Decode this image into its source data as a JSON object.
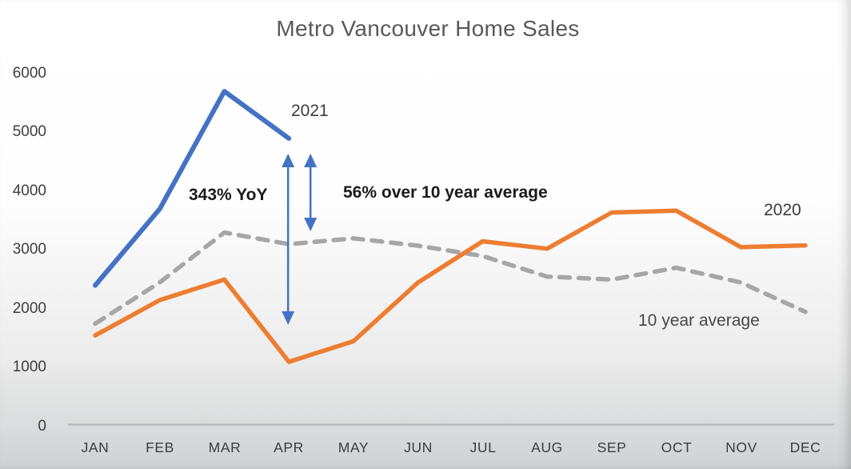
{
  "chart_data": {
    "type": "line",
    "title": "Metro Vancouver Home Sales",
    "categories": [
      "JAN",
      "FEB",
      "MAR",
      "APR",
      "MAY",
      "JUN",
      "JUL",
      "AUG",
      "SEP",
      "OCT",
      "NOV",
      "DEC"
    ],
    "ytick_labels": [
      "6000",
      "5000",
      "4000",
      "3000",
      "2000",
      "1000",
      "0"
    ],
    "ylim": [
      0,
      6000
    ],
    "grid": false,
    "legend": "inline-labels",
    "axis_color": "#b3b3b3",
    "series": [
      {
        "name": "2021",
        "color": "#4472C4",
        "style": "solid",
        "values": [
          2400,
          3700,
          5700,
          4900
        ]
      },
      {
        "name": "2020",
        "color": "#ED7D31",
        "style": "solid",
        "values": [
          1550,
          2150,
          2500,
          1100,
          1450,
          2450,
          3150,
          3025,
          3640,
          3670,
          3050,
          3080
        ]
      },
      {
        "name": "10 year average",
        "color": "#A6A6A6",
        "style": "dashed",
        "values": [
          1750,
          2450,
          3300,
          3100,
          3200,
          3075,
          2900,
          2550,
          2500,
          2700,
          2450,
          1950
        ]
      }
    ],
    "annotations": {
      "yoy_label": "343% YoY",
      "over_avg_label": "56% over 10 year average",
      "label_2021": "2021",
      "label_2020": "2020",
      "label_avg": "10 year average",
      "arrow_color": "#4472C4",
      "arrows": [
        {
          "at_month": "APR",
          "month_index": 3,
          "dx": -1,
          "from_value": 4640,
          "to_value": 1730
        },
        {
          "at_month": "APR",
          "month_index": 3,
          "dx": 27,
          "from_value": 4640,
          "to_value": 3320
        }
      ]
    }
  }
}
